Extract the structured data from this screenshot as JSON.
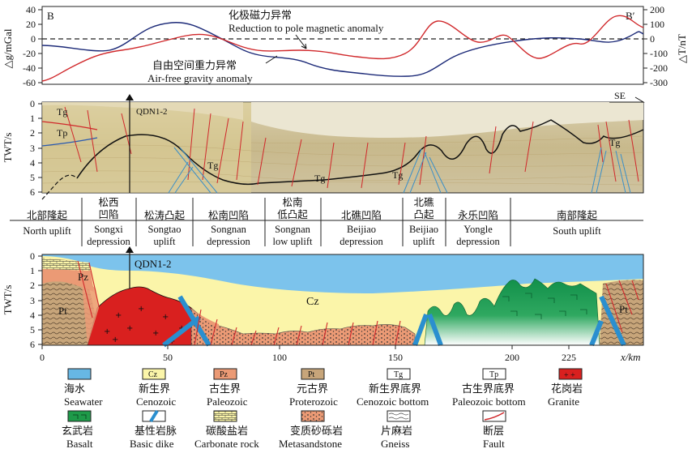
{
  "panel_top": {
    "left_endpoint": "B",
    "right_endpoint": "B′",
    "left_axis_label": "△g/mGal",
    "right_axis_label": "△T/nT",
    "left_ticks": [
      "40",
      "20",
      "0",
      "-20",
      "-40",
      "-60"
    ],
    "right_ticks": [
      "200",
      "100",
      "0",
      "-100",
      "-200",
      "-300"
    ],
    "magnetic_label_cn": "化极磁力异常",
    "magnetic_label_en": "Reduction to pole magnetic anomaly",
    "gravity_label_cn": "自由空间重力异常",
    "gravity_label_en": "Air-free gravity anomaly",
    "magnetic_color": "#1c2a78",
    "gravity_color": "#d0282b"
  },
  "panel_seismic": {
    "axis_label": "TWT/s",
    "ticks": [
      "0",
      "1",
      "2",
      "3",
      "4",
      "5",
      "6"
    ],
    "well": "QDN1-2",
    "direction": "SE",
    "horizons": [
      "Tg",
      "Tp",
      "Tg",
      "Tg",
      "Tg",
      "Tg"
    ]
  },
  "units": [
    {
      "cn1": "北部隆起",
      "cn2": "",
      "en1": "North uplift",
      "en2": ""
    },
    {
      "cn1": "松西",
      "cn2": "凹陷",
      "en1": "Songxi",
      "en2": "depression"
    },
    {
      "cn1": "松涛凸起",
      "cn2": "",
      "en1": "Songtao",
      "en2": "uplift"
    },
    {
      "cn1": "松南凹陷",
      "cn2": "",
      "en1": "Songnan",
      "en2": "depression"
    },
    {
      "cn1": "松南",
      "cn2": "低凸起",
      "en1": "Songnan",
      "en2": "low uplift"
    },
    {
      "cn1": "北礁凹陷",
      "cn2": "",
      "en1": "Beijiao",
      "en2": "depression"
    },
    {
      "cn1": "北礁",
      "cn2": "凸起",
      "en1": "Beijiao",
      "en2": "uplift"
    },
    {
      "cn1": "永乐凹陷",
      "cn2": "",
      "en1": "Yongle",
      "en2": "depression"
    },
    {
      "cn1": "南部隆起",
      "cn2": "",
      "en1": "South uplift",
      "en2": ""
    }
  ],
  "panel_geo": {
    "axis_label": "TWT/s",
    "y_ticks": [
      "0",
      "1",
      "2",
      "3",
      "4",
      "5",
      "6"
    ],
    "x_ticks": [
      "0",
      "50",
      "100",
      "150",
      "200",
      "225"
    ],
    "x_label": "x/km",
    "well": "QDN1-2",
    "labels": {
      "pz": "Pz",
      "pt_left": "Pt",
      "pt_right": "Pt",
      "cz": "Cz"
    }
  },
  "legend": [
    {
      "cn": "海水",
      "en": "Seawater",
      "icon": "seawater",
      "color": "#67b7e4"
    },
    {
      "cn": "新生界",
      "en": "Cenozoic",
      "icon": "cenozoic",
      "color": "#fbf5a9",
      "code": "Cz"
    },
    {
      "cn": "古生界",
      "en": "Paleozoic",
      "icon": "paleozoic",
      "color": "#eb9a75",
      "code": "Pz"
    },
    {
      "cn": "元古界",
      "en": "Proterozoic",
      "icon": "proterozoic",
      "color": "#c7a57a",
      "code": "Pt"
    },
    {
      "cn": "新生界底界",
      "en": "Cenozoic bottom",
      "icon": "tg",
      "code": "Tg"
    },
    {
      "cn": "古生界底界",
      "en": "Paleozoic bottom",
      "icon": "tp",
      "code": "Tp"
    },
    {
      "cn": "花岗岩",
      "en": "Granite",
      "icon": "granite",
      "color": "#d9201f"
    },
    {
      "cn": "玄武岩",
      "en": "Basalt",
      "icon": "basalt",
      "color": "#1e9a49"
    },
    {
      "cn": "基性岩脉",
      "en": "Basic dike",
      "icon": "dike",
      "color": "#2a8fcf"
    },
    {
      "cn": "碳酸盐岩",
      "en": "Carbonate rock",
      "icon": "carbonate"
    },
    {
      "cn": "变质砂砾岩",
      "en": "Metasandstone",
      "icon": "metasandstone"
    },
    {
      "cn": "片麻岩",
      "en": "Gneiss",
      "icon": "gneiss"
    },
    {
      "cn": "断层",
      "en": "Fault",
      "icon": "fault",
      "color": "#d0282b"
    }
  ]
}
